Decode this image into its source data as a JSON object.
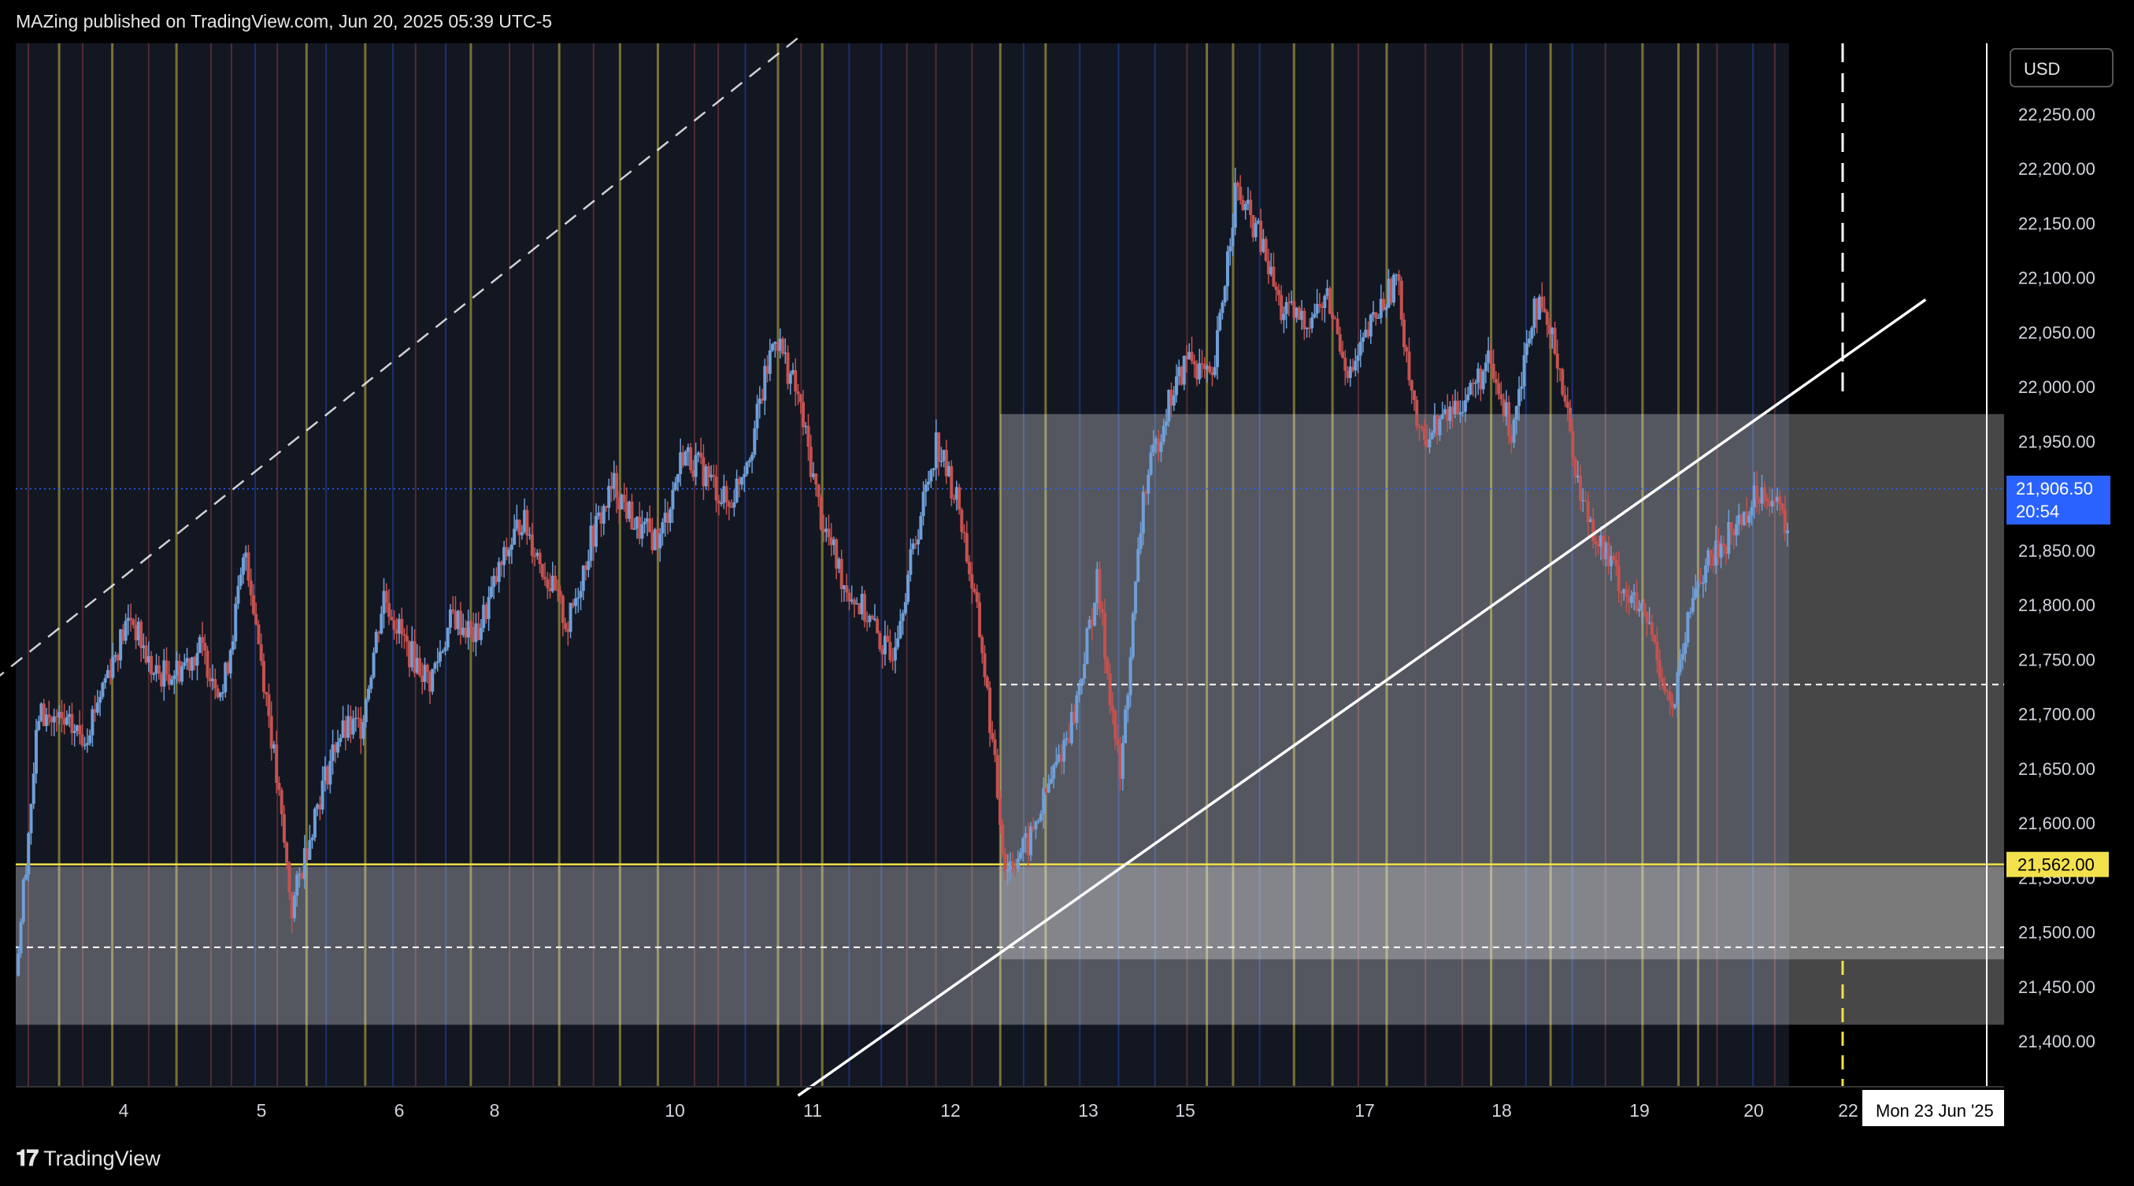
{
  "header": {
    "text": "MAZing published on TradingView.com, Jun 20, 2025 05:39 UTC-5"
  },
  "footer": {
    "brand": "TradingView",
    "logo": "tradingview-logo-icon"
  },
  "colors": {
    "background": "#000000",
    "session_bg": "#131722",
    "candle_up": "#6f9fd8",
    "candle_down": "#c4524f",
    "yellow_line": "#f2e14c",
    "price_label_bg": "#2962ff",
    "zone": "#ffffff"
  },
  "chart_data": {
    "type": "candlestick",
    "currency": "USD",
    "ylim": [
      21360,
      22310
    ],
    "yticks": [
      "22,250.00",
      "22,200.00",
      "22,150.00",
      "22,100.00",
      "22,050.00",
      "22,000.00",
      "21,950.00",
      "21,900.00",
      "21,850.00",
      "21,800.00",
      "21,750.00",
      "21,700.00",
      "21,650.00",
      "21,600.00",
      "21,550.00",
      "21,500.00",
      "21,450.00",
      "21,400.00"
    ],
    "xticks": [
      "4",
      "5",
      "6",
      "8",
      "10",
      "11",
      "12",
      "13",
      "15",
      "17",
      "18",
      "19",
      "20",
      "22"
    ],
    "x_highlight_label": "Mon 23 Jun '25",
    "last_price": {
      "value": 21906.5,
      "label": "21,906.50",
      "countdown": "20:54"
    },
    "yellow_level": {
      "value": 21562,
      "label": "21,562.00"
    },
    "dashed_levels": [
      21727,
      21486
    ],
    "zones": [
      {
        "y_top": 21975,
        "y_bottom": 21475
      },
      {
        "y_top": 21560,
        "y_bottom": 21415
      }
    ],
    "price_path": [
      [
        0,
        21460
      ],
      [
        1,
        21700
      ],
      [
        2,
        21690
      ],
      [
        3,
        21680
      ],
      [
        4,
        21740
      ],
      [
        5,
        21790
      ],
      [
        6,
        21735
      ],
      [
        7,
        21740
      ],
      [
        8,
        21760
      ],
      [
        9,
        21720
      ],
      [
        10,
        21850
      ],
      [
        11,
        21700
      ],
      [
        12,
        21520
      ],
      [
        13,
        21610
      ],
      [
        14,
        21680
      ],
      [
        15,
        21690
      ],
      [
        16,
        21810
      ],
      [
        17,
        21760
      ],
      [
        18,
        21730
      ],
      [
        19,
        21790
      ],
      [
        20,
        21770
      ],
      [
        21,
        21830
      ],
      [
        22,
        21880
      ],
      [
        23,
        21830
      ],
      [
        24,
        21780
      ],
      [
        25,
        21860
      ],
      [
        26,
        21910
      ],
      [
        27,
        21870
      ],
      [
        28,
        21860
      ],
      [
        29,
        21940
      ],
      [
        30,
        21920
      ],
      [
        31,
        21890
      ],
      [
        32,
        21950
      ],
      [
        33,
        22050
      ],
      [
        34,
        21990
      ],
      [
        35,
        21880
      ],
      [
        36,
        21820
      ],
      [
        37,
        21790
      ],
      [
        38,
        21750
      ],
      [
        39,
        21850
      ],
      [
        40,
        21950
      ],
      [
        41,
        21890
      ],
      [
        42,
        21760
      ],
      [
        43,
        21560
      ],
      [
        44,
        21580
      ],
      [
        45,
        21640
      ],
      [
        46,
        21700
      ],
      [
        47,
        21820
      ],
      [
        48,
        21640
      ],
      [
        49,
        21900
      ],
      [
        50,
        21980
      ],
      [
        51,
        22030
      ],
      [
        52,
        22000
      ],
      [
        53,
        22180
      ],
      [
        54,
        22140
      ],
      [
        55,
        22070
      ],
      [
        56,
        22060
      ],
      [
        57,
        22080
      ],
      [
        58,
        22010
      ],
      [
        59,
        22060
      ],
      [
        60,
        22100
      ],
      [
        61,
        21950
      ],
      [
        62,
        21970
      ],
      [
        63,
        21990
      ],
      [
        64,
        22020
      ],
      [
        65,
        21960
      ],
      [
        66,
        22080
      ],
      [
        67,
        22030
      ],
      [
        68,
        21900
      ],
      [
        69,
        21850
      ],
      [
        70,
        21810
      ],
      [
        71,
        21780
      ],
      [
        72,
        21700
      ],
      [
        73,
        21820
      ],
      [
        74,
        21850
      ],
      [
        75,
        21880
      ],
      [
        76,
        21910
      ],
      [
        77,
        21870
      ]
    ],
    "trendlines": [
      {
        "style": "dashed",
        "from": [
          -1,
          21730
        ],
        "to": [
          34,
          22320
        ]
      },
      {
        "style": "solid",
        "from": [
          34,
          21350
        ],
        "to": [
          83,
          22080
        ]
      }
    ]
  }
}
